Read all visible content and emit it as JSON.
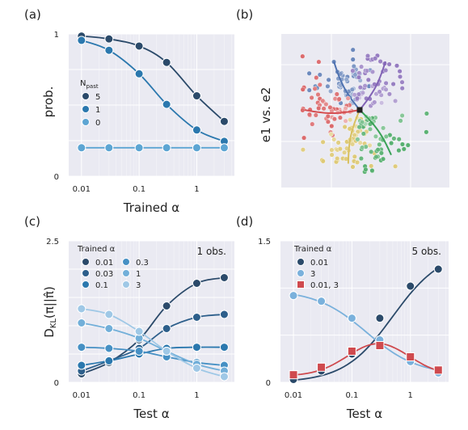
{
  "chart_data": [
    {
      "panel": "(a)",
      "type": "line",
      "xscale": "log",
      "xlim": [
        0.006,
        4.5
      ],
      "ylim": [
        0,
        1
      ],
      "xticks": [
        0.01,
        0.1,
        1
      ],
      "xtick_labels": [
        "0.01",
        "0.1",
        "1"
      ],
      "yticks": [
        0,
        1
      ],
      "ytick_labels": [
        "0",
        "1"
      ],
      "xlabel": "Trained α",
      "ylabel": "prob.",
      "legend_title": "N",
      "legend_title_sub": "past",
      "legend_position": "middle-left",
      "grid": true,
      "x": [
        0.01,
        0.03,
        0.1,
        0.3,
        1,
        3
      ],
      "series": [
        {
          "name": "5",
          "color": "#2b4a6a",
          "values": [
            0.985,
            0.965,
            0.915,
            0.8,
            0.565,
            0.385
          ]
        },
        {
          "name": "1",
          "color": "#2b78ae",
          "values": [
            0.955,
            0.885,
            0.72,
            0.505,
            0.325,
            0.245
          ]
        },
        {
          "name": "0",
          "color": "#5da5d3",
          "values": [
            0.2,
            0.2,
            0.2,
            0.2,
            0.2,
            0.2
          ]
        }
      ]
    },
    {
      "panel": "(b)",
      "type": "scatter",
      "ylabel": "e1 vs. e2",
      "grid": true,
      "clusters": [
        {
          "color": "#4f72b0",
          "angle": 118
        },
        {
          "color": "#8163b5",
          "angle": 62
        },
        {
          "color": "#d54f52",
          "angle": 180
        },
        {
          "color": "#d8c05f",
          "angle": 258
        },
        {
          "color": "#3aa257",
          "angle": 305
        }
      ]
    },
    {
      "panel": "(c)",
      "type": "line",
      "xscale": "log",
      "xlim": [
        0.006,
        4.5
      ],
      "ylim": [
        0,
        2.5
      ],
      "xticks": [
        0.01,
        0.1,
        1
      ],
      "xtick_labels": [
        "0.01",
        "0.1",
        "1"
      ],
      "yticks": [
        0,
        2.5
      ],
      "ytick_labels": [
        "0",
        "2.5"
      ],
      "xlabel": "Test α",
      "ylabel": "D_KL(π||π̂)",
      "legend_title": "Trained α",
      "legend_position": "top-left",
      "annotation": "1 obs.",
      "grid": true,
      "x": [
        0.01,
        0.03,
        0.1,
        0.3,
        1,
        3
      ],
      "series": [
        {
          "name": "0.01",
          "color": "#2b4a6a",
          "values": [
            0.15,
            0.35,
            0.75,
            1.35,
            1.75,
            1.85
          ]
        },
        {
          "name": "0.03",
          "color": "#2d5f8b",
          "values": [
            0.2,
            0.38,
            0.6,
            0.95,
            1.15,
            1.2
          ]
        },
        {
          "name": "0.1",
          "color": "#2b78ae",
          "values": [
            0.3,
            0.38,
            0.5,
            0.6,
            0.62,
            0.62
          ]
        },
        {
          "name": "0.3",
          "color": "#4690c4",
          "values": [
            0.62,
            0.6,
            0.55,
            0.45,
            0.35,
            0.3
          ]
        },
        {
          "name": "1",
          "color": "#72afd9",
          "values": [
            1.05,
            0.95,
            0.78,
            0.55,
            0.32,
            0.2
          ]
        },
        {
          "name": "3",
          "color": "#9fc8e6",
          "values": [
            1.3,
            1.2,
            0.9,
            0.55,
            0.25,
            0.1
          ]
        }
      ]
    },
    {
      "panel": "(d)",
      "type": "line",
      "xscale": "log",
      "xlim": [
        0.006,
        4.5
      ],
      "ylim": [
        0,
        1.5
      ],
      "xticks": [
        0.01,
        0.1,
        1
      ],
      "xtick_labels": [
        "0.01",
        "0.1",
        "1"
      ],
      "yticks": [
        0,
        1.5
      ],
      "ytick_labels": [
        "0",
        "1.5"
      ],
      "xlabel": "Test α",
      "legend_title": "Trained α",
      "legend_position": "top-left",
      "annotation": "5 obs.",
      "grid": true,
      "x": [
        0.01,
        0.03,
        0.1,
        0.3,
        1,
        3
      ],
      "series": [
        {
          "name": "0.01",
          "color": "#2b4a6a",
          "marker": "circle",
          "values": [
            0.03,
            0.12,
            0.3,
            0.68,
            1.02,
            1.2
          ]
        },
        {
          "name": "3",
          "color": "#7ab1dc",
          "marker": "circle",
          "values": [
            0.92,
            0.86,
            0.68,
            0.45,
            0.22,
            0.1
          ]
        },
        {
          "name": "0.01, 3",
          "color": "#cf4a4e",
          "marker": "square",
          "values": [
            0.08,
            0.16,
            0.33,
            0.39,
            0.27,
            0.13
          ]
        }
      ]
    }
  ]
}
